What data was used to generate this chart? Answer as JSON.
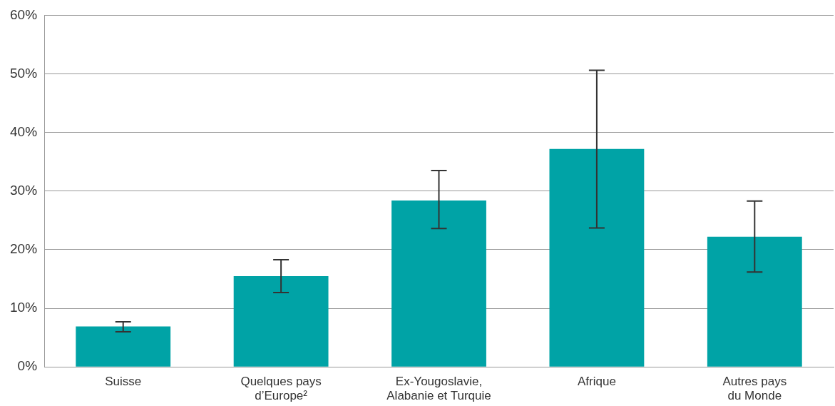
{
  "chart_data": {
    "type": "bar",
    "categories": [
      "Suisse",
      "Quelques pays\nd’Europe²",
      "Ex-Yougoslavie,\nAlabanie et Turquie",
      "Afrique",
      "Autres pays\ndu Monde"
    ],
    "values": [
      6.9,
      15.5,
      28.4,
      37.2,
      22.2
    ],
    "errors": [
      [
        6.0,
        7.7
      ],
      [
        12.7,
        18.3
      ],
      [
        23.6,
        33.5
      ],
      [
        23.7,
        50.6
      ],
      [
        16.2,
        28.3
      ]
    ],
    "color": "#00a3a6",
    "ylim": [
      0,
      60
    ],
    "yticks": [
      {
        "value": 0,
        "label": "0%"
      },
      {
        "value": 10,
        "label": "10%"
      },
      {
        "value": 20,
        "label": "20%"
      },
      {
        "value": 30,
        "label": "30%"
      },
      {
        "value": 40,
        "label": "40%"
      },
      {
        "value": 50,
        "label": "50%"
      },
      {
        "value": 60,
        "label": "60%"
      }
    ],
    "grid": "y",
    "legend": false
  }
}
